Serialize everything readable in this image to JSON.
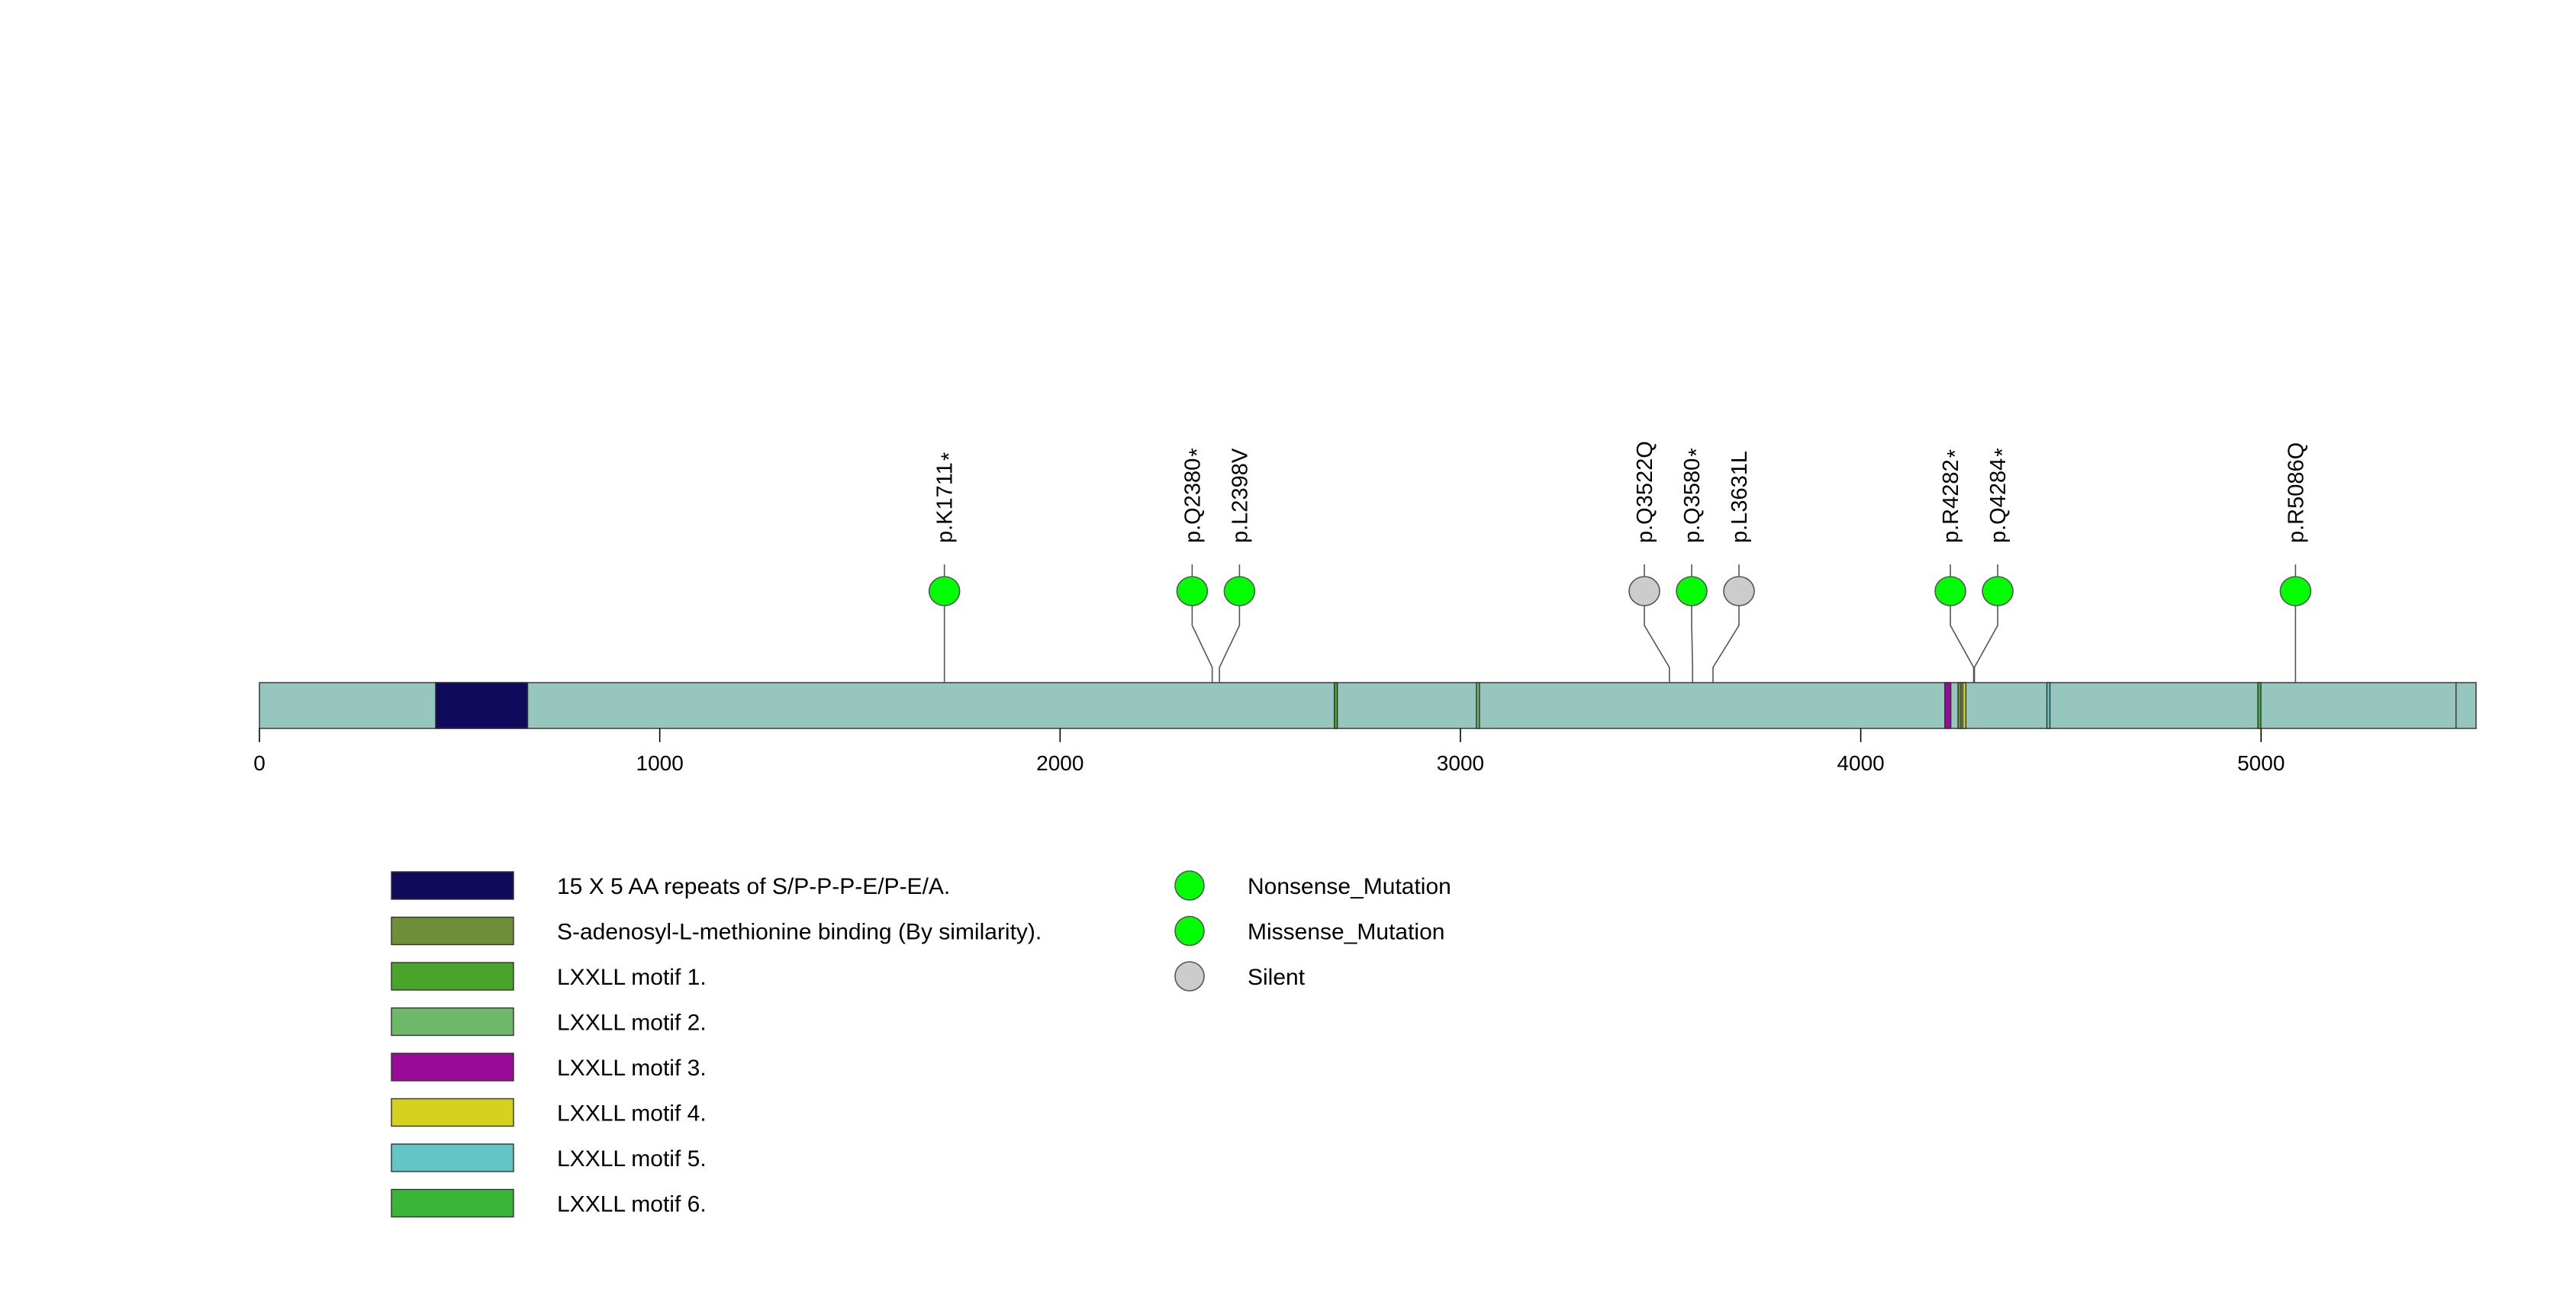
{
  "chart_data": {
    "type": "lollipop",
    "protein_length": 5537,
    "xlim": [
      0,
      5537
    ],
    "x_ticks": [
      0,
      1000,
      2000,
      3000,
      4000,
      5000
    ],
    "x_tick_labels": [
      "0",
      "1000",
      "2000",
      "3000",
      "4000",
      "5000"
    ],
    "backbone_color": "#96c6bd",
    "domains": [
      {
        "name": "15 X 5 AA repeats of S/P-P-P-E/P-E/A.",
        "start": 440,
        "end": 670,
        "color": "#0f0a5c"
      },
      {
        "name": "S-adenosyl-L-methionine binding (By similarity).",
        "start": 4243,
        "end": 4250,
        "color": "#6e8e37"
      },
      {
        "name": "LXXLL motif 1.",
        "start": 2685,
        "end": 2690,
        "color": "#48a52a"
      },
      {
        "name": "LXXLL motif 2.",
        "start": 3040,
        "end": 3045,
        "color": "#6db869"
      },
      {
        "name": "LXXLL motif 3.",
        "start": 4210,
        "end": 4225,
        "color": "#990a99"
      },
      {
        "name": "LXXLL motif 4.",
        "start": 4255,
        "end": 4262,
        "color": "#d4d21f"
      },
      {
        "name": "LXXLL motif 5.",
        "start": 4465,
        "end": 4470,
        "color": "#63c6c4"
      },
      {
        "name": "LXXLL motif 6.",
        "start": 4992,
        "end": 4997,
        "color": "#3bb537"
      }
    ],
    "segment_dividers": [
      5487
    ],
    "mutations": [
      {
        "label": "p.K1711",
        "star": true,
        "position": 1711,
        "type": "Nonsense_Mutation"
      },
      {
        "label": "p.Q2380",
        "star": true,
        "position": 2380,
        "type": "Nonsense_Mutation"
      },
      {
        "label": "p.L2398V",
        "star": false,
        "position": 2398,
        "type": "Missense_Mutation"
      },
      {
        "label": "p.Q3522Q",
        "star": false,
        "position": 3522,
        "type": "Silent"
      },
      {
        "label": "p.Q3580",
        "star": true,
        "position": 3580,
        "type": "Nonsense_Mutation"
      },
      {
        "label": "p.L3631L",
        "star": false,
        "position": 3631,
        "type": "Silent"
      },
      {
        "label": "p.R4282",
        "star": true,
        "position": 4282,
        "type": "Nonsense_Mutation"
      },
      {
        "label": "p.Q4284",
        "star": true,
        "position": 4284,
        "type": "Nonsense_Mutation"
      },
      {
        "label": "p.R5086Q",
        "star": false,
        "position": 5086,
        "type": "Missense_Mutation"
      }
    ],
    "mutation_legend": [
      {
        "name": "Nonsense_Mutation",
        "color": "#00ff00"
      },
      {
        "name": "Missense_Mutation",
        "color": "#00ff00"
      },
      {
        "name": "Silent",
        "color": "#cccccc"
      }
    ],
    "mutation_colors": {
      "Nonsense_Mutation": "#00ff00",
      "Missense_Mutation": "#00ff00",
      "Silent": "#cccccc"
    },
    "star_symbol": "*"
  }
}
